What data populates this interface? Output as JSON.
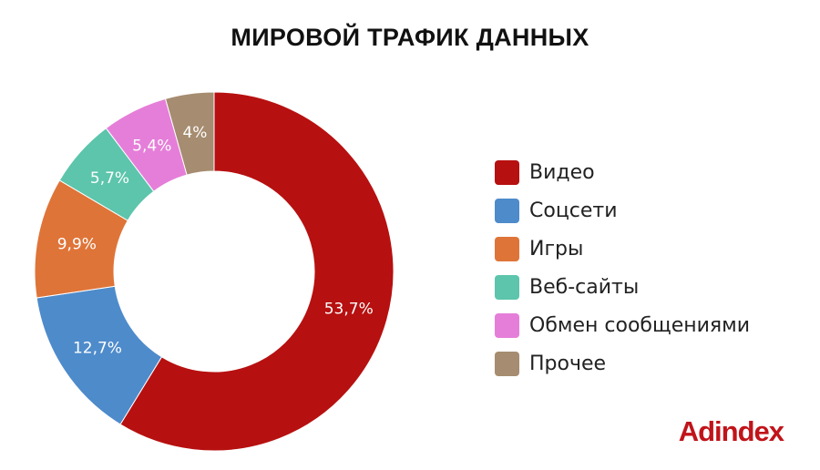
{
  "chart_data": {
    "type": "pie",
    "title": "МИРОВОЙ ТРАФИК ДАННЫХ",
    "donut": true,
    "legend_position": "right",
    "slices": [
      {
        "label": "Видео",
        "value": 53.7,
        "display": "53,7%",
        "color": "#b71010"
      },
      {
        "label": "Соцсети",
        "value": 12.7,
        "display": "12,7%",
        "color": "#4e8bcb"
      },
      {
        "label": "Игры",
        "value": 9.9,
        "display": "9,9%",
        "color": "#df7438"
      },
      {
        "label": "Веб-сайты",
        "value": 5.7,
        "display": "5,7%",
        "color": "#5cc5ac"
      },
      {
        "label": "Обмен сообщениями",
        "value": 5.4,
        "display": "5,4%",
        "color": "#e57ed9"
      },
      {
        "label": "Прочее",
        "value": 4,
        "display": "4%",
        "color": "#a68c70"
      }
    ]
  },
  "brand": {
    "logo_text": "Adindex",
    "color": "#c0141a"
  }
}
